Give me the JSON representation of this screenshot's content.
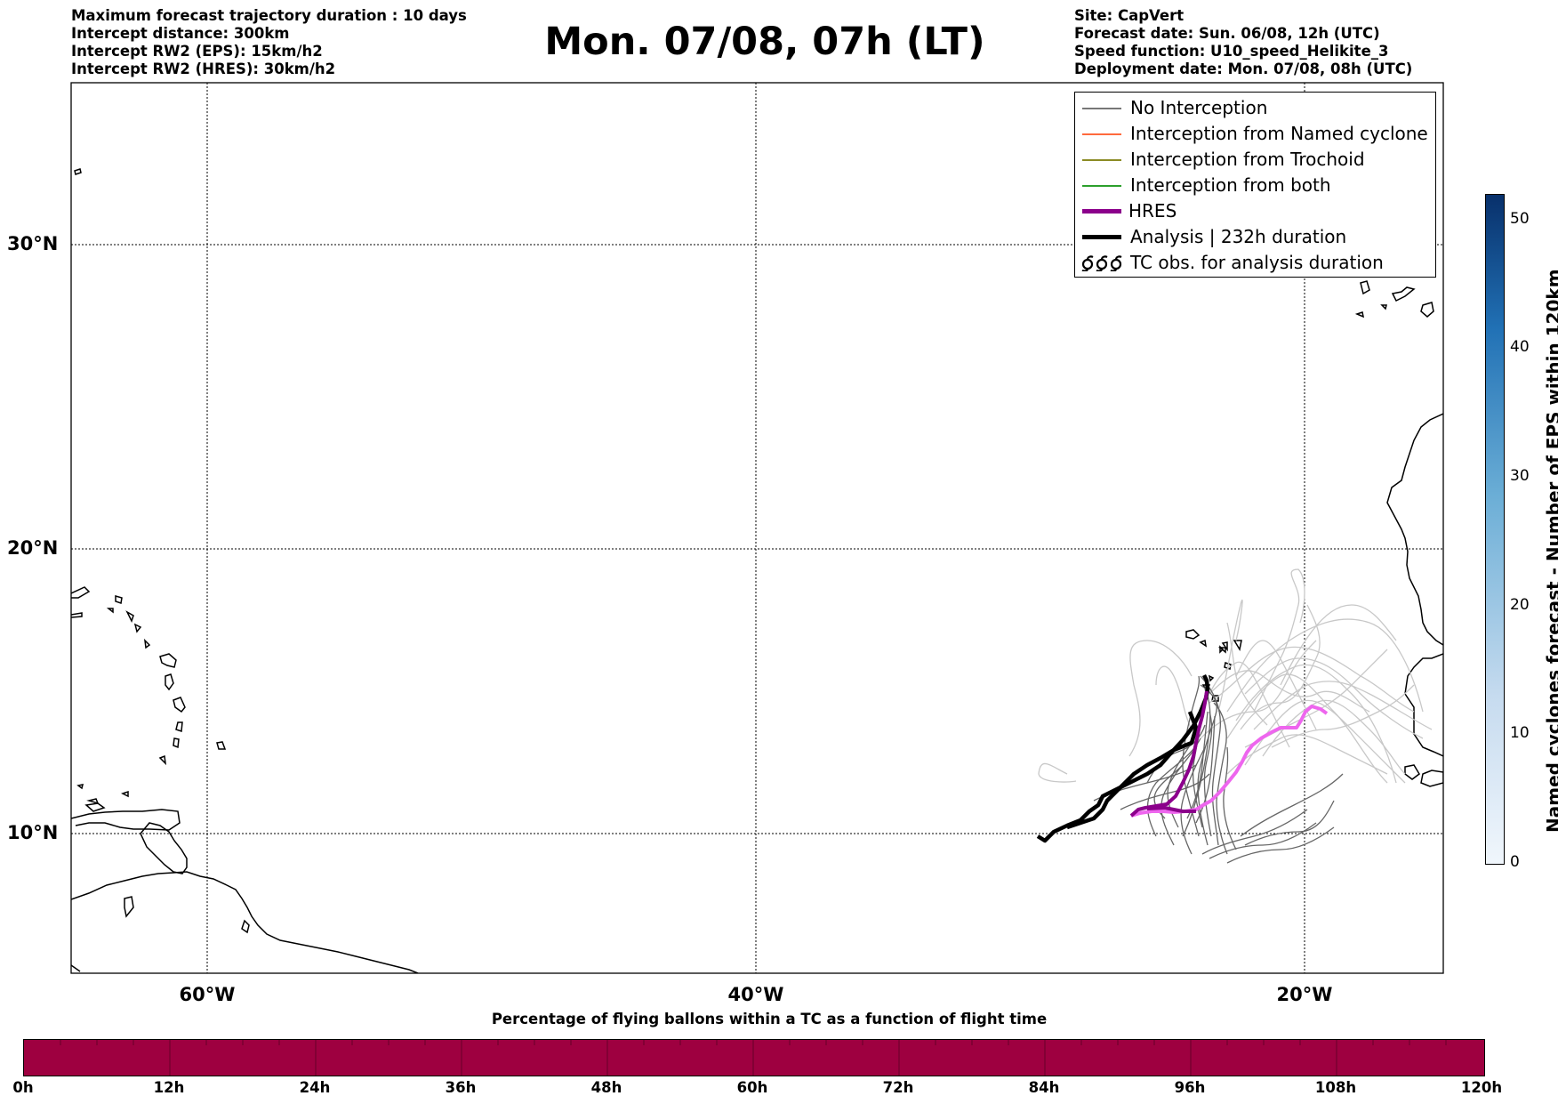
{
  "header_left": [
    "Maximum forecast trajectory duration : 10 days",
    "Intercept distance: 300km",
    "Intercept RW2 (EPS):  15km/h2",
    "Intercept RW2 (HRES): 30km/h2"
  ],
  "title": "Mon. 07/08, 07h (LT)",
  "header_right": [
    "Site: CapVert",
    "Forecast date: Sun. 06/08, 12h (UTC)",
    "Speed function: U10_speed_Helikite_3",
    "Deployment date: Mon. 07/08, 08h (UTC)"
  ],
  "lat_labels": [
    "30°N",
    "20°N",
    "10°N"
  ],
  "lon_labels": [
    "60°W",
    "40°W",
    "20°W"
  ],
  "legend": [
    {
      "label": "No Interception",
      "color": "#777777",
      "icon": "thin-line"
    },
    {
      "label": "Interception from Named cyclone",
      "color": "#ff6a3d",
      "icon": "thin-line"
    },
    {
      "label": "Interception from Trochoid",
      "color": "#8b8b24",
      "icon": "thin-line"
    },
    {
      "label": "Interception from both",
      "color": "#2ca02c",
      "icon": "thin-line"
    },
    {
      "label": "HRES",
      "color": "#8b008b",
      "icon": "thick-line"
    },
    {
      "label": "Analysis | 232h duration",
      "color": "#000000",
      "icon": "thick-line"
    },
    {
      "label": "TC obs. for analysis duration",
      "color": "#000000",
      "icon": "cyclone-symbol-icon"
    }
  ],
  "colorbar": {
    "label": "Named cyclones forecast - Number of EPS within 120km",
    "ticks": [
      "0",
      "10",
      "20",
      "30",
      "40",
      "50"
    ],
    "range": [
      0,
      52
    ]
  },
  "flight_bar": {
    "title": "Percentage of flying ballons within a TC as a function of flight time",
    "ticks": [
      "0h",
      "12h",
      "24h",
      "36h",
      "48h",
      "60h",
      "72h",
      "84h",
      "96h",
      "108h",
      "120h"
    ],
    "color": "#9e0040"
  },
  "colors": {
    "hres_past": "#8b008b",
    "hres_future": "#ee66ee",
    "eps_near": "#666666",
    "eps_far": "#c8c8c8",
    "analysis": "#000000"
  }
}
